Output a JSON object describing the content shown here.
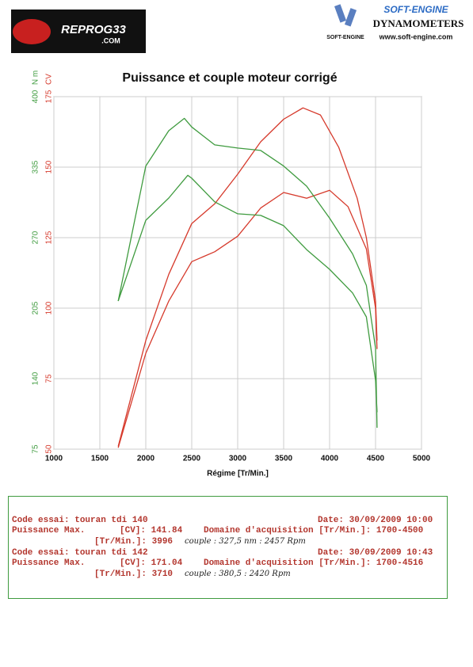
{
  "header": {
    "logo": "REPROG33",
    "logo_sub": ".COM",
    "brand": "SOFT-ENGINE",
    "brand_sub": "DYNAMOMETERS",
    "brand_mark": "SOFT-ENGINE",
    "website": "www.soft-engine.com"
  },
  "chart_data": {
    "type": "line",
    "title": "Puissance et couple moteur corrigé",
    "xlabel": "Régime [Tr/Min.]",
    "ylabel": "CV",
    "y2label": "N m",
    "xlim": [
      1000,
      5000
    ],
    "xticks": [
      1000,
      1500,
      2000,
      2500,
      3000,
      3500,
      4000,
      4500,
      5000
    ],
    "ylim": [
      50,
      175
    ],
    "yticks": [
      50,
      75,
      100,
      125,
      150,
      175
    ],
    "y2lim": [
      75,
      400
    ],
    "y2ticks": [
      75,
      140,
      205,
      270,
      335,
      400
    ],
    "grid": true,
    "series": [
      {
        "color": "#d63a2c",
        "x": [
          1700,
          2000,
          2250,
          2500,
          2750,
          3000,
          3250,
          3500,
          3710,
          3900,
          4100,
          4300,
          4400,
          4500,
          4516
        ],
        "values": [
          51,
          88.5,
          112,
          130,
          137,
          147.5,
          159,
          167,
          171,
          168.5,
          157,
          139,
          125,
          102.5,
          88.5
        ]
      },
      {
        "color": "#d63a2c",
        "x": [
          1700,
          2000,
          2250,
          2500,
          2750,
          3000,
          3250,
          3500,
          3750,
          4000,
          4200,
          4400,
          4500,
          4516
        ],
        "values": [
          50.5,
          84,
          102.5,
          116.5,
          120,
          125.5,
          135.5,
          141,
          139,
          141.8,
          136,
          121,
          100,
          85.5
        ]
      },
      {
        "color": "#3f9b3f",
        "axis": "y2",
        "x": [
          1700,
          2000,
          2250,
          2420,
          2500,
          2750,
          3000,
          3250,
          3500,
          3750,
          4000,
          4250,
          4400,
          4500,
          4516
        ],
        "values": [
          211.6,
          336,
          368.6,
          380,
          372,
          355.5,
          352.6,
          350.4,
          336,
          317.5,
          288,
          255,
          226,
          168,
          94.7
        ]
      },
      {
        "color": "#3f9b3f",
        "axis": "y2",
        "x": [
          1700,
          2000,
          2250,
          2457,
          2500,
          2750,
          3000,
          3250,
          3500,
          3750,
          4000,
          4250,
          4400,
          4500,
          4516
        ],
        "values": [
          211.6,
          286,
          306.5,
          327.5,
          324.8,
          303,
          292,
          290.5,
          281,
          259,
          240.8,
          219,
          197,
          138.5,
          109
        ]
      }
    ]
  },
  "info": {
    "tests": [
      {
        "code": "Code essai: touran tdi 140",
        "date": "Date: 30/09/2009 10:00",
        "power_label": "Puissance Max.",
        "power": "[CV]: 141.84",
        "domain": "Domaine d'acquisition [Tr/Min.]: 1700-4500",
        "rpm": "[Tr/Min.]: 3996",
        "note": "couple : 327,5 nm : 2457 Rpm"
      },
      {
        "code": "Code essai: touran tdi 142",
        "date": "Date: 30/09/2009 10:43",
        "power_label": "Puissance Max.",
        "power": "[CV]: 171.04",
        "domain": "Domaine d'acquisition [Tr/Min.]: 1700-4516",
        "rpm": "[Tr/Min.]: 3710",
        "note": "couple : 380,5 : 2420 Rpm"
      }
    ]
  }
}
